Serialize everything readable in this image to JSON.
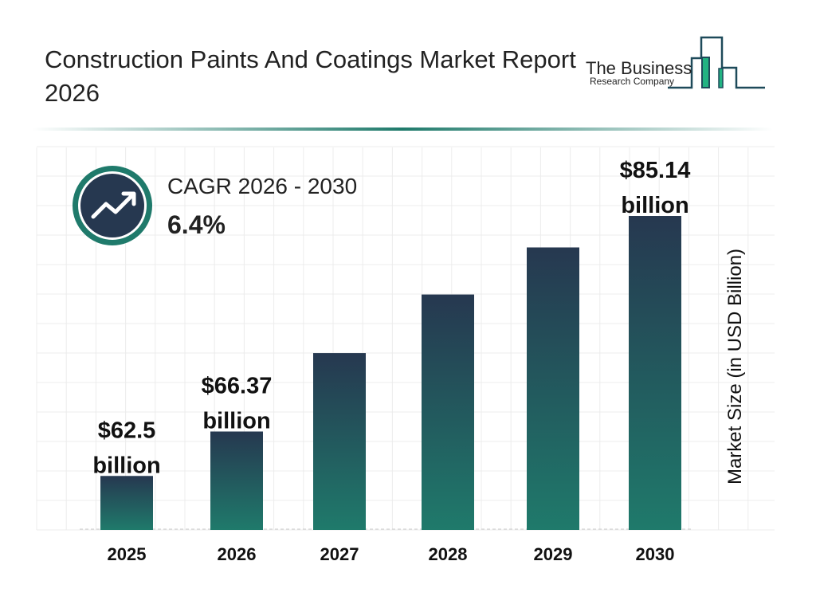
{
  "header": {
    "title": "Construction Paints And Coatings Market Report 2026",
    "logo_line1": "The Business",
    "logo_line2": "Research Company"
  },
  "cagr": {
    "label": "CAGR 2026 - 2030",
    "value": "6.4%",
    "icon": "trending-up-icon"
  },
  "colors": {
    "bar_top": "#263850",
    "bar_bottom": "#1f7a6b",
    "accent": "#1f7a6b",
    "logo_green": "#22b382",
    "logo_navy": "#1e4a5a"
  },
  "chart_data": {
    "type": "bar",
    "categories": [
      "2025",
      "2026",
      "2027",
      "2028",
      "2029",
      "2030"
    ],
    "values": [
      62.5,
      66.37,
      73.2,
      78.3,
      82.4,
      85.14
    ],
    "data_labels": [
      "$62.5 billion",
      "$66.37 billion",
      "",
      "",
      "",
      "$85.14 billion"
    ],
    "data_label_lines": [
      [
        "$62.5",
        "billion"
      ],
      [
        "$66.37",
        "billion"
      ],
      [],
      [],
      [],
      [
        "$85.14",
        "billion"
      ]
    ],
    "ylabel": "Market Size (in USD Billion)",
    "xlabel": "",
    "ylim": [
      57.8,
      87.5
    ],
    "grid": true
  }
}
